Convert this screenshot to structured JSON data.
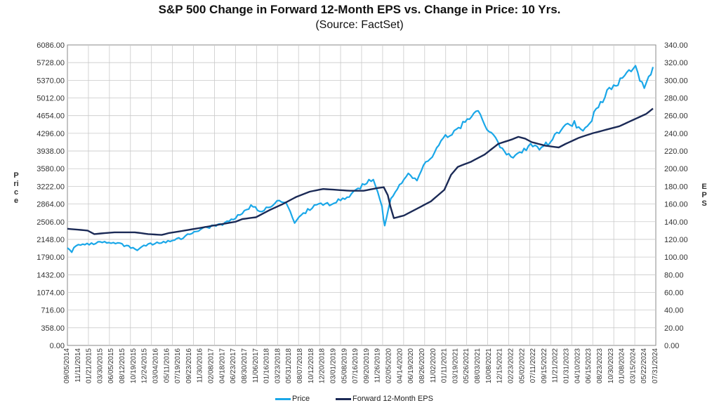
{
  "chart_data": {
    "type": "line",
    "title": "S&P 500 Change in Forward 12-Month EPS vs. Change in Price: 10 Yrs.",
    "subtitle": "(Source: FactSet)",
    "ylabel": "Price",
    "y2label": "EPS",
    "ylim": [
      0,
      6086
    ],
    "y2lim": [
      0,
      340
    ],
    "y_ticks": [
      "0.00",
      "358.00",
      "716.00",
      "1074.00",
      "1432.00",
      "1790.00",
      "2148.00",
      "2506.00",
      "2864.00",
      "3222.00",
      "3580.00",
      "3938.00",
      "4296.00",
      "4654.00",
      "5012.00",
      "5370.00",
      "5728.00",
      "6086.00"
    ],
    "y2_ticks": [
      "0.00",
      "20.00",
      "40.00",
      "60.00",
      "80.00",
      "100.00",
      "120.00",
      "140.00",
      "160.00",
      "180.00",
      "200.00",
      "220.00",
      "240.00",
      "260.00",
      "280.00",
      "300.00",
      "320.00",
      "340.00"
    ],
    "x_ticks": [
      "09/05/2014",
      "11/11/2014",
      "01/21/2015",
      "03/30/2015",
      "06/05/2015",
      "08/12/2015",
      "10/19/2015",
      "12/24/2015",
      "03/04/2016",
      "05/11/2016",
      "07/19/2016",
      "09/23/2016",
      "11/30/2016",
      "02/08/2017",
      "04/18/2017",
      "06/23/2017",
      "08/30/2017",
      "11/06/2017",
      "01/16/2018",
      "03/23/2018",
      "05/31/2018",
      "08/07/2018",
      "10/12/2018",
      "12/20/2018",
      "03/01/2019",
      "05/08/2019",
      "07/16/2019",
      "09/20/2019",
      "11/26/2019",
      "02/05/2020",
      "04/14/2020",
      "06/19/2020",
      "08/26/2020",
      "11/02/2020",
      "01/11/2021",
      "03/19/2021",
      "05/26/2021",
      "08/03/2021",
      "10/08/2021",
      "12/15/2021",
      "02/23/2022",
      "05/02/2022",
      "07/11/2022",
      "09/15/2022",
      "11/21/2022",
      "01/31/2023",
      "04/10/2023",
      "06/15/2023",
      "08/23/2023",
      "10/30/2023",
      "01/08/2024",
      "03/15/2024",
      "05/22/2024",
      "07/31/2024"
    ],
    "series": [
      {
        "name": "Price",
        "axis": "left",
        "color": "#1aa7e8",
        "points": [
          [
            0,
            2000
          ],
          [
            0.5,
            1900
          ],
          [
            1,
            2040
          ],
          [
            2,
            2050
          ],
          [
            3,
            2070
          ],
          [
            4,
            2100
          ],
          [
            5,
            2090
          ],
          [
            6,
            2060
          ],
          [
            7,
            2000
          ],
          [
            8,
            1930
          ],
          [
            9,
            2040
          ],
          [
            10,
            2060
          ],
          [
            11,
            2090
          ],
          [
            12,
            2140
          ],
          [
            13,
            2170
          ],
          [
            14,
            2250
          ],
          [
            15,
            2330
          ],
          [
            16,
            2390
          ],
          [
            17,
            2420
          ],
          [
            18,
            2470
          ],
          [
            19,
            2570
          ],
          [
            20,
            2660
          ],
          [
            21,
            2840
          ],
          [
            22,
            2730
          ],
          [
            23,
            2780
          ],
          [
            24,
            2930
          ],
          [
            25,
            2880
          ],
          [
            26,
            2500
          ],
          [
            27,
            2680
          ],
          [
            28,
            2790
          ],
          [
            29,
            2880
          ],
          [
            30,
            2850
          ],
          [
            31,
            2950
          ],
          [
            32,
            2980
          ],
          [
            33,
            3130
          ],
          [
            34,
            3280
          ],
          [
            35,
            3380
          ],
          [
            36,
            2800
          ],
          [
            36.3,
            2400
          ],
          [
            37,
            2950
          ],
          [
            38,
            3230
          ],
          [
            39,
            3480
          ],
          [
            40,
            3350
          ],
          [
            41,
            3700
          ],
          [
            42,
            3900
          ],
          [
            43,
            4200
          ],
          [
            44,
            4300
          ],
          [
            45,
            4450
          ],
          [
            46,
            4600
          ],
          [
            47,
            4770
          ],
          [
            48,
            4400
          ],
          [
            49,
            4200
          ],
          [
            50,
            3900
          ],
          [
            51,
            3800
          ],
          [
            52,
            3900
          ],
          [
            53,
            4070
          ],
          [
            54,
            3970
          ],
          [
            55,
            4100
          ],
          [
            56,
            4300
          ],
          [
            57,
            4450
          ],
          [
            58,
            4500
          ],
          [
            59,
            4350
          ],
          [
            60,
            4600
          ],
          [
            61,
            4900
          ],
          [
            62,
            5200
          ],
          [
            63,
            5300
          ],
          [
            64,
            5550
          ],
          [
            65,
            5600
          ],
          [
            66,
            5200
          ],
          [
            67,
            5640
          ]
        ]
      },
      {
        "name": "Forward 12-Month EPS",
        "axis": "right",
        "color": "#1b2a56",
        "points": [
          [
            0,
            132
          ],
          [
            3,
            130
          ],
          [
            4,
            126
          ],
          [
            7,
            128
          ],
          [
            10,
            128
          ],
          [
            12,
            126
          ],
          [
            14,
            125
          ],
          [
            15,
            127
          ],
          [
            19,
            132
          ],
          [
            22,
            136
          ],
          [
            25,
            140
          ],
          [
            26,
            143
          ],
          [
            28,
            145
          ],
          [
            30,
            153
          ],
          [
            32,
            160
          ],
          [
            34,
            168
          ],
          [
            36,
            174
          ],
          [
            38,
            177
          ],
          [
            40,
            176
          ],
          [
            42,
            175
          ],
          [
            44,
            175
          ],
          [
            46,
            178
          ],
          [
            47,
            179
          ],
          [
            47.6,
            170
          ],
          [
            48,
            157
          ],
          [
            48.5,
            144
          ],
          [
            50,
            147
          ],
          [
            52,
            155
          ],
          [
            54,
            163
          ],
          [
            56,
            176
          ],
          [
            57,
            193
          ],
          [
            58,
            202
          ],
          [
            60,
            208
          ],
          [
            62,
            216
          ],
          [
            64,
            228
          ],
          [
            66,
            233
          ],
          [
            67,
            236
          ],
          [
            68,
            234
          ],
          [
            69,
            230
          ],
          [
            71,
            226
          ],
          [
            73,
            224
          ],
          [
            74,
            228
          ],
          [
            76,
            235
          ],
          [
            78,
            240
          ],
          [
            80,
            244
          ],
          [
            82,
            248
          ],
          [
            84,
            255
          ],
          [
            86,
            262
          ],
          [
            87,
            268
          ]
        ]
      }
    ],
    "legend": [
      "Price",
      "Forward 12-Month EPS"
    ]
  }
}
